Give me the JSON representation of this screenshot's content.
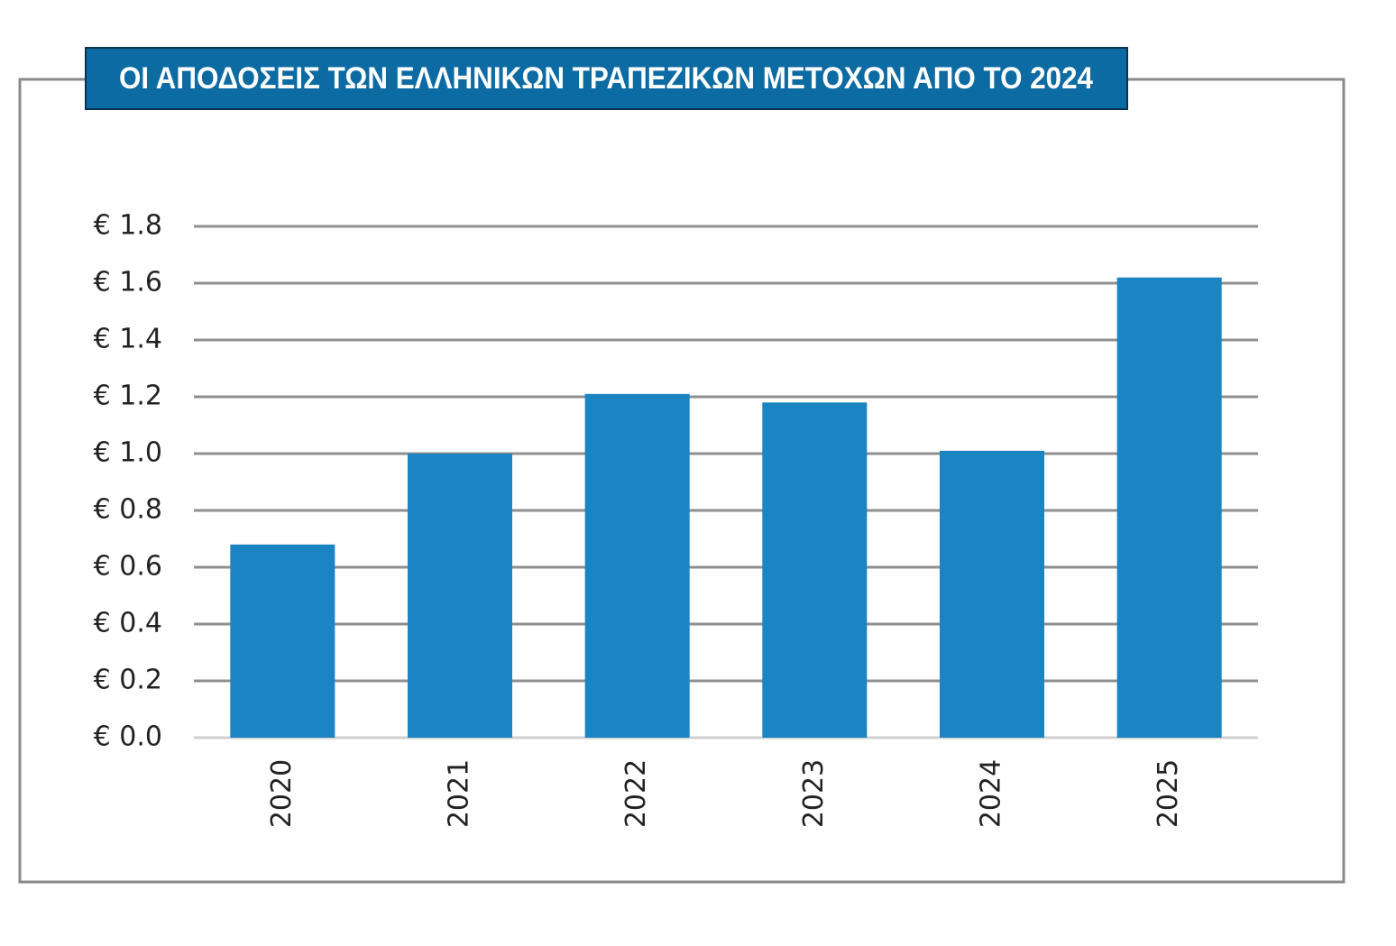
{
  "chart_data": {
    "type": "bar",
    "title": "ΟΙ ΑΠΟΔΟΣΕΙΣ ΤΩΝ ΕΛΛΗΝΙΚΩΝ ΤΡΑΠΕΖΙΚΩΝ ΜΕΤΟΧΩΝ ΑΠΟ ΤΟ 2024",
    "categories": [
      "2020",
      "2021",
      "2022",
      "2023",
      "2024",
      "2025"
    ],
    "values": [
      0.68,
      1.0,
      1.21,
      1.18,
      1.01,
      1.62
    ],
    "color": "#1a85c2",
    "ylim": [
      0,
      1.8
    ],
    "yticks": [
      {
        "value": 0,
        "label": "€ 0.0"
      },
      {
        "value": 0.2,
        "label": "€ 0.2"
      },
      {
        "value": 0.4,
        "label": "€ 0.4"
      },
      {
        "value": 0.6,
        "label": "€ 0.6"
      },
      {
        "value": 0.8,
        "label": "€ 0.8"
      },
      {
        "value": 1.0,
        "label": "€ 1.0"
      },
      {
        "value": 1.2,
        "label": "€ 1.2"
      },
      {
        "value": 1.4,
        "label": "€ 1.4"
      },
      {
        "value": 1.6,
        "label": "€ 1.6"
      },
      {
        "value": 1.8,
        "label": "€ 1.8"
      }
    ],
    "grid": true
  }
}
